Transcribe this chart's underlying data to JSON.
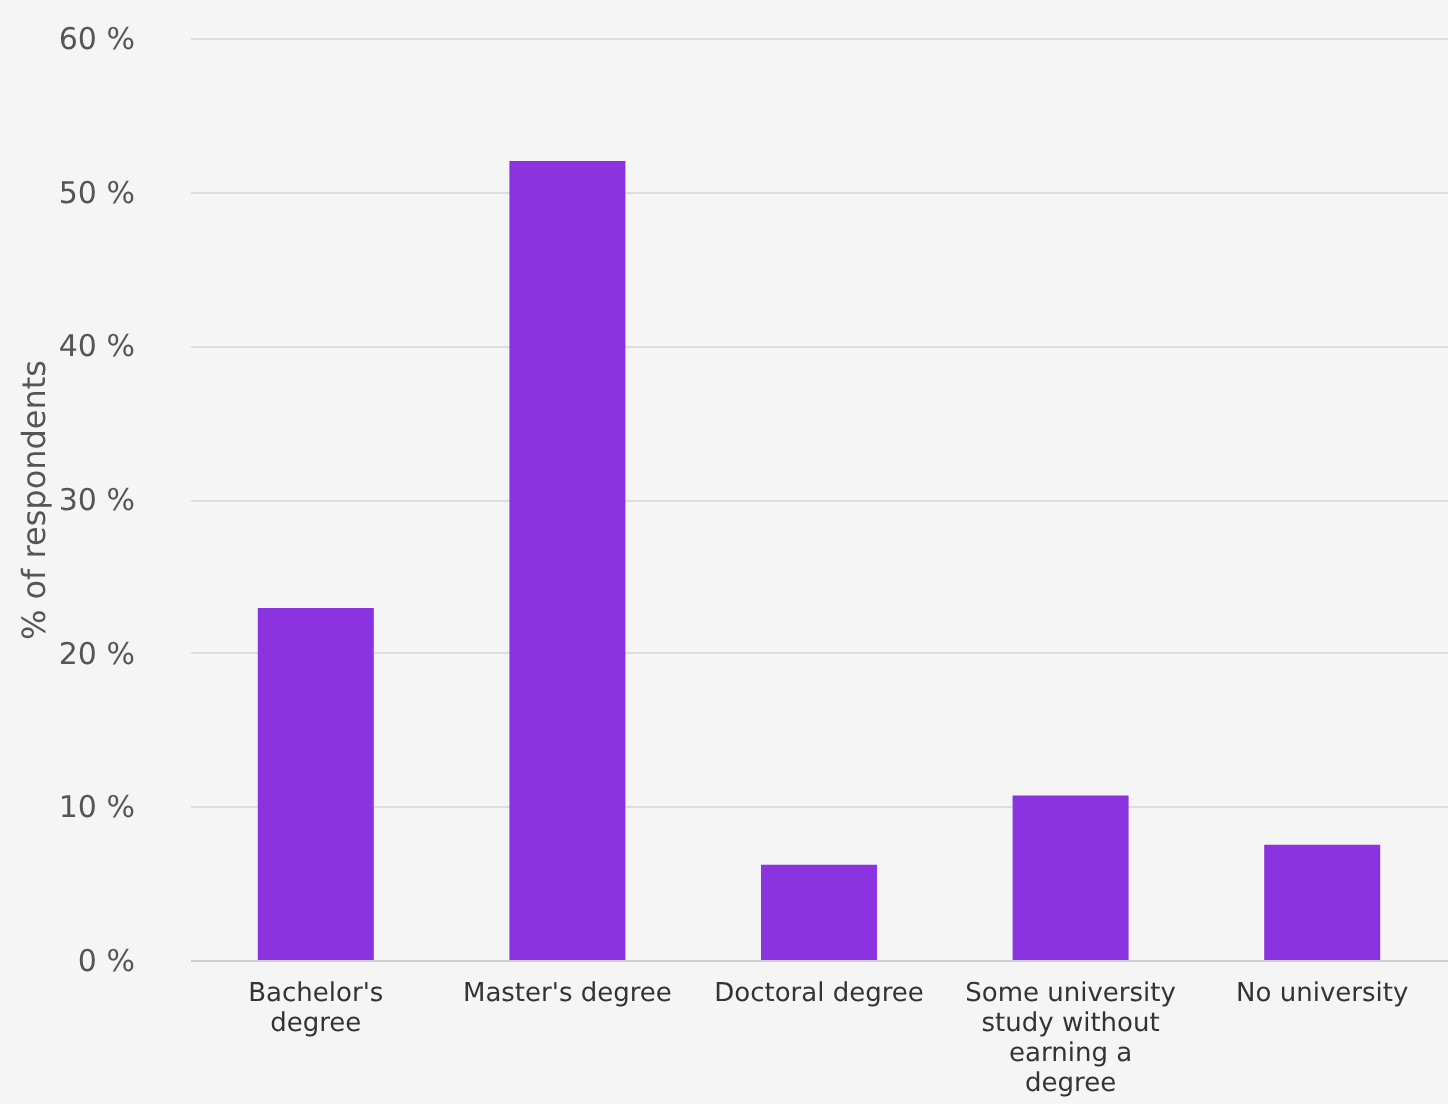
{
  "chart_data": {
    "type": "bar",
    "ylabel": "% of respondents",
    "categories": [
      "Bachelor's\ndegree",
      "Master's degree",
      "Doctoral degree",
      "Some university\nstudy without\nearning a\ndegree",
      "No university"
    ],
    "values": [
      22.9,
      52.0,
      6.2,
      10.7,
      7.5
    ],
    "color": "#8a33df",
    "ylim": [
      0,
      60
    ],
    "yticks": [
      {
        "value": 0,
        "label": "0 %"
      },
      {
        "value": 10,
        "label": "10 %"
      },
      {
        "value": 20,
        "label": "20 %"
      },
      {
        "value": 30,
        "label": "30 %"
      },
      {
        "value": 40,
        "label": "40 %"
      },
      {
        "value": 50,
        "label": "50 %"
      },
      {
        "value": 60,
        "label": "60 %"
      }
    ],
    "grid": "y"
  }
}
